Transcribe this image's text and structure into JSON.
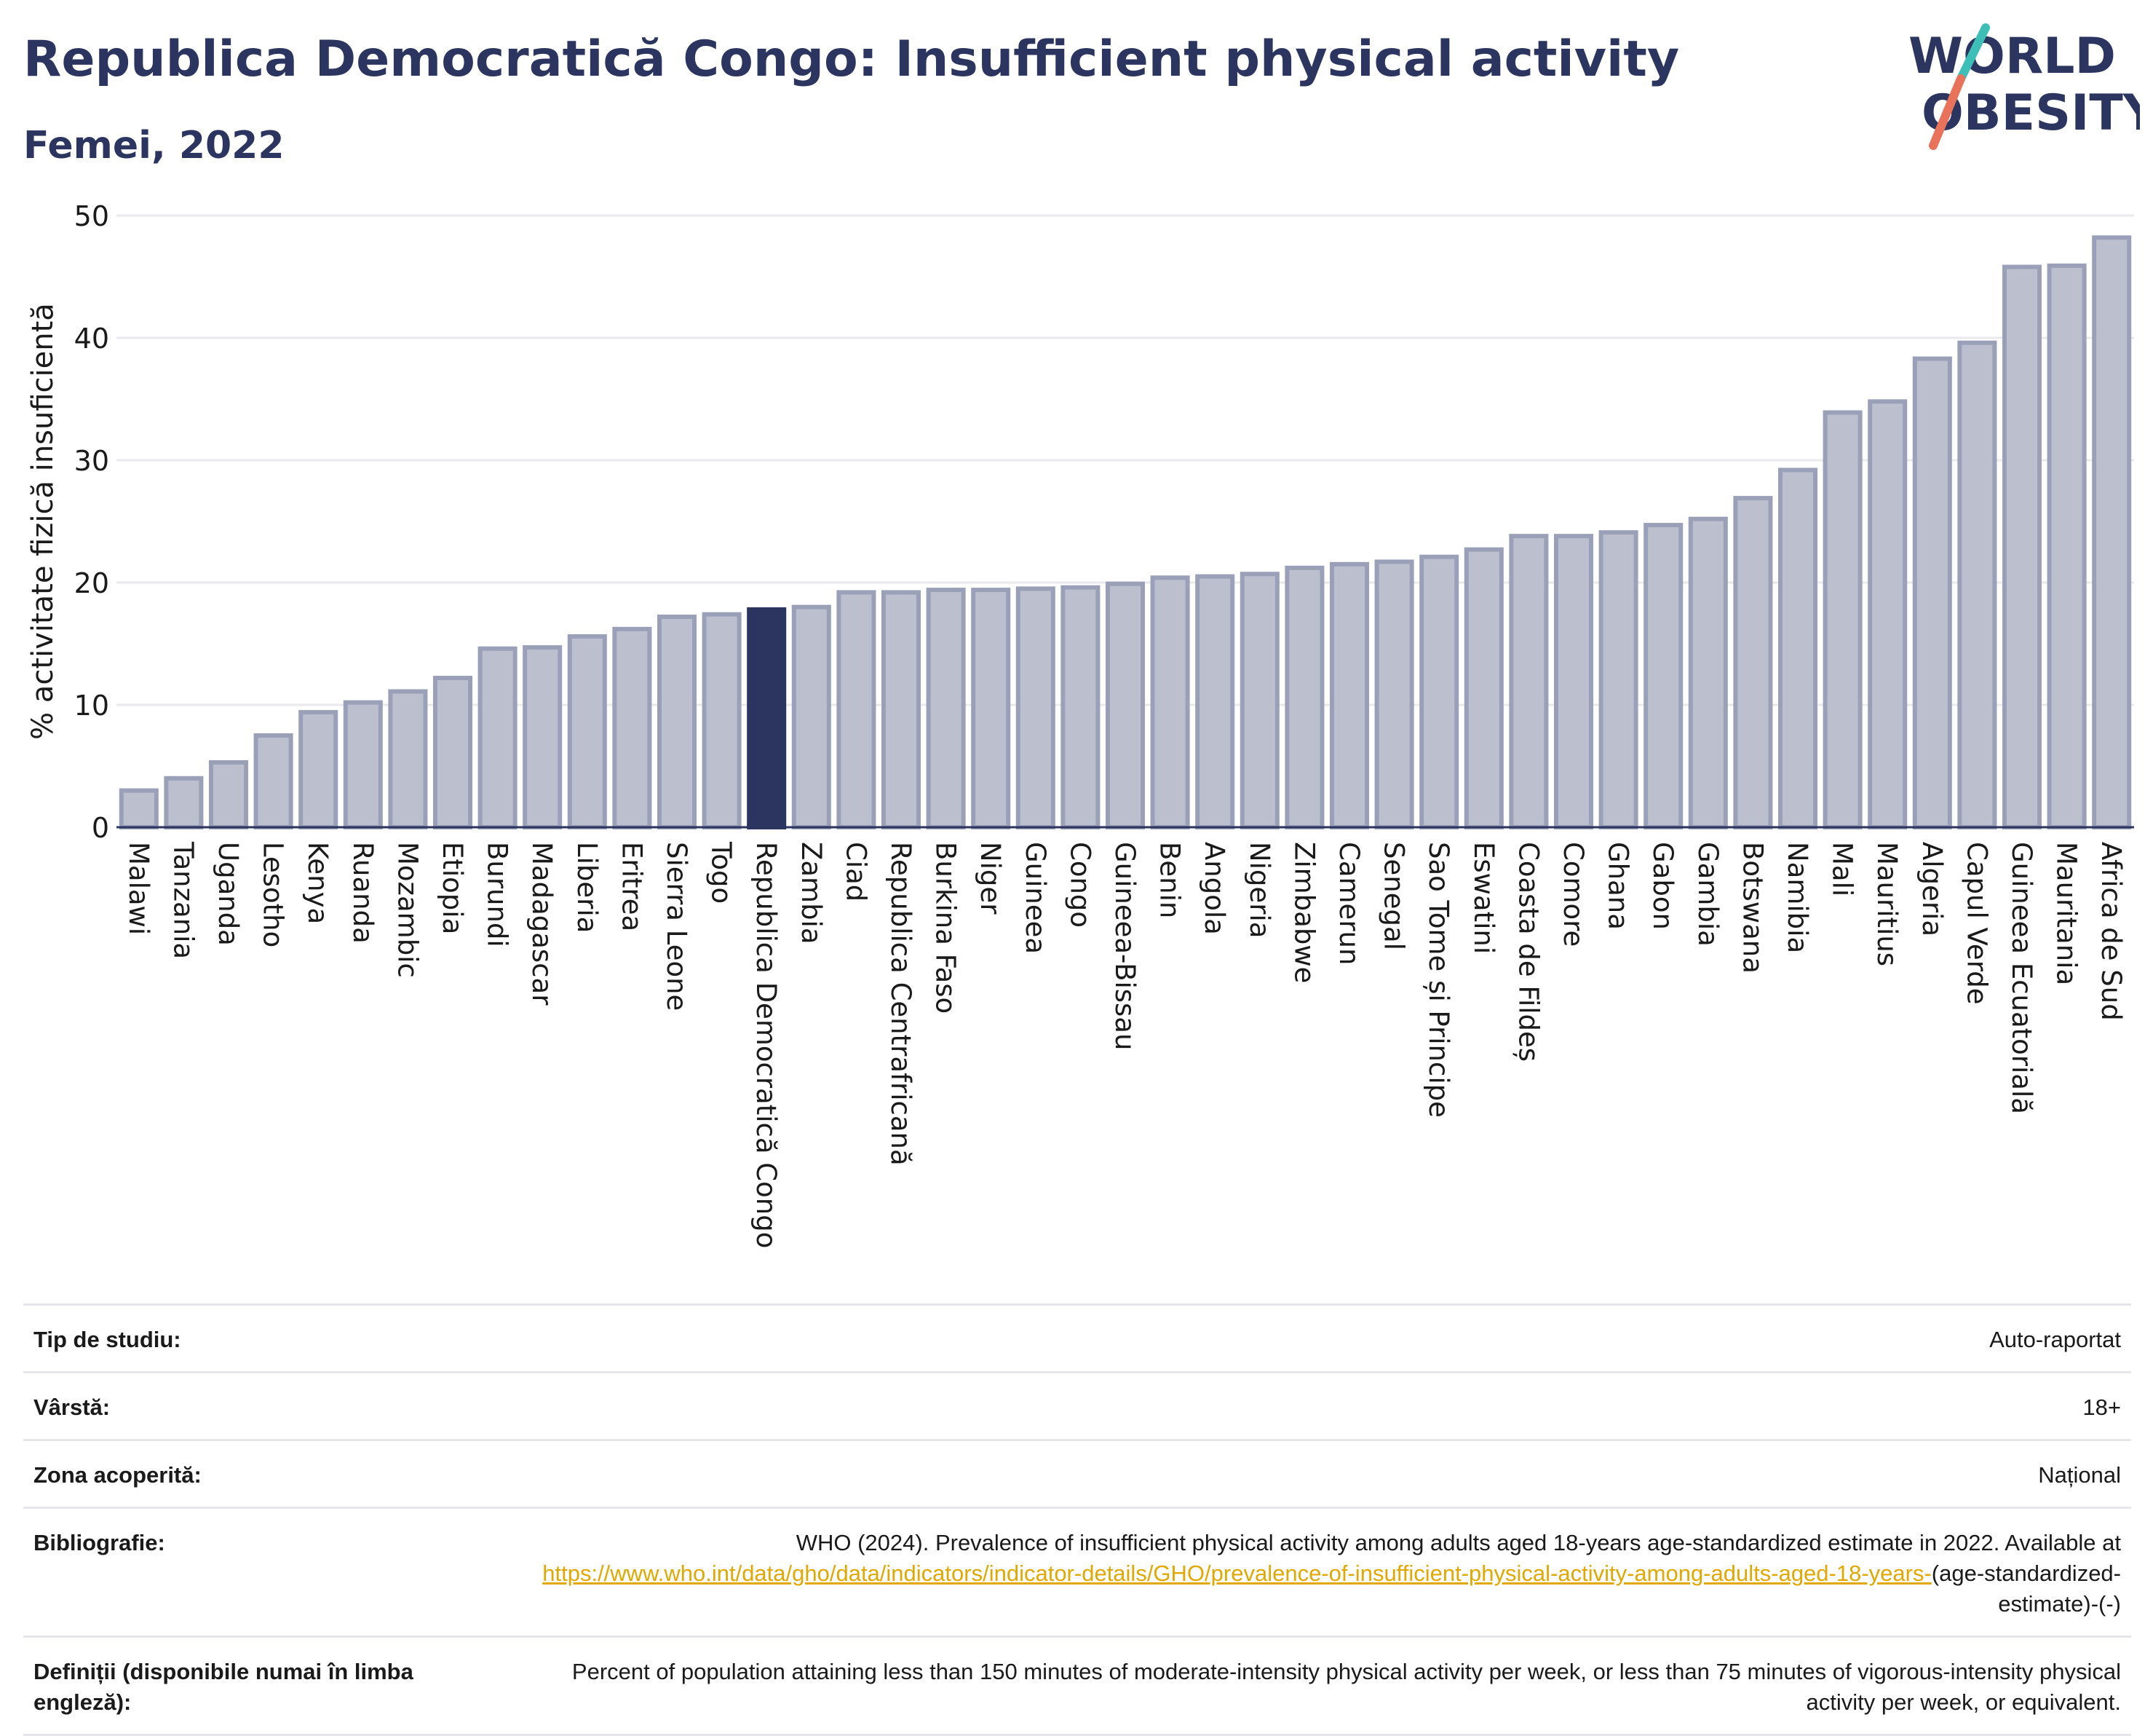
{
  "header": {
    "title": "Republica Democratică Congo: Insufficient physical activity",
    "subtitle": "Femei, 2022"
  },
  "logo": {
    "line1": "WORLD",
    "line2": "OBESITY",
    "colors": {
      "text": "#2b3560",
      "slash_teal": "#3dbfb8",
      "slash_coral": "#e8735a"
    }
  },
  "colors": {
    "bar_default": "#bcc0ce",
    "bar_border": "#9aa0b8",
    "bar_highlight": "#2b3560",
    "gridline": "#e9e9ee",
    "axis": "#2b3560"
  },
  "chart_data": {
    "type": "bar",
    "title": "",
    "xlabel": "",
    "ylabel": "% activitate fizică insuficientă",
    "ylim": [
      0,
      50
    ],
    "yticks": [
      0,
      10,
      20,
      30,
      40,
      50
    ],
    "grid": true,
    "highlight": "Republica Democratică Congo",
    "categories": [
      "Malawi",
      "Tanzania",
      "Uganda",
      "Lesotho",
      "Kenya",
      "Ruanda",
      "Mozambic",
      "Etiopia",
      "Burundi",
      "Madagascar",
      "Liberia",
      "Eritrea",
      "Sierra Leone",
      "Togo",
      "Republica Democratică Congo",
      "Zambia",
      "Ciad",
      "Republica Centrafricană",
      "Burkina Faso",
      "Niger",
      "Guineea",
      "Congo",
      "Guineea-Bissau",
      "Benin",
      "Angola",
      "Nigeria",
      "Zimbabwe",
      "Camerun",
      "Senegal",
      "Sao Tome și Principe",
      "Eswatini",
      "Coasta de Fildeș",
      "Comore",
      "Ghana",
      "Gabon",
      "Gambia",
      "Botswana",
      "Namibia",
      "Mali",
      "Mauritius",
      "Algeria",
      "Capul Verde",
      "Guineea Ecuatorială",
      "Mauritania",
      "Africa de Sud"
    ],
    "values": [
      3.0,
      4.0,
      5.3,
      7.5,
      9.4,
      10.2,
      11.1,
      12.2,
      14.6,
      14.7,
      15.6,
      16.2,
      17.2,
      17.4,
      17.8,
      18.0,
      19.2,
      19.2,
      19.4,
      19.4,
      19.5,
      19.6,
      19.9,
      20.4,
      20.5,
      20.7,
      21.2,
      21.5,
      21.7,
      22.1,
      22.7,
      23.8,
      23.8,
      24.1,
      24.7,
      25.2,
      26.9,
      29.2,
      33.9,
      34.8,
      38.3,
      39.6,
      45.8,
      45.9,
      48.2
    ]
  },
  "info": [
    {
      "label": "Tip de studiu:",
      "value": "Auto-raportat"
    },
    {
      "label": "Vârstă:",
      "value": "18+"
    },
    {
      "label": "Zona acoperită:",
      "value": "Național"
    },
    {
      "label": "Bibliografie:",
      "value_before": "WHO (2024). Prevalence of insufficient physical activity among adults aged 18-years age-standardized estimate in 2022. Available at ",
      "link": "https://www.who.int/data/gho/data/indicators/indicator-details/GHO/prevalence-of-insufficient-physical-activity-among-adults-aged-18-years-",
      "value_after": "(age-standardized-estimate)-(-)"
    },
    {
      "label": "Definiții (disponibile numai în limba engleză):",
      "value": "Percent of population attaining less than 150 minutes of moderate-intensity physical activity per week, or less than 75 minutes of vigorous-intensity physical activity per week, or equivalent."
    }
  ]
}
